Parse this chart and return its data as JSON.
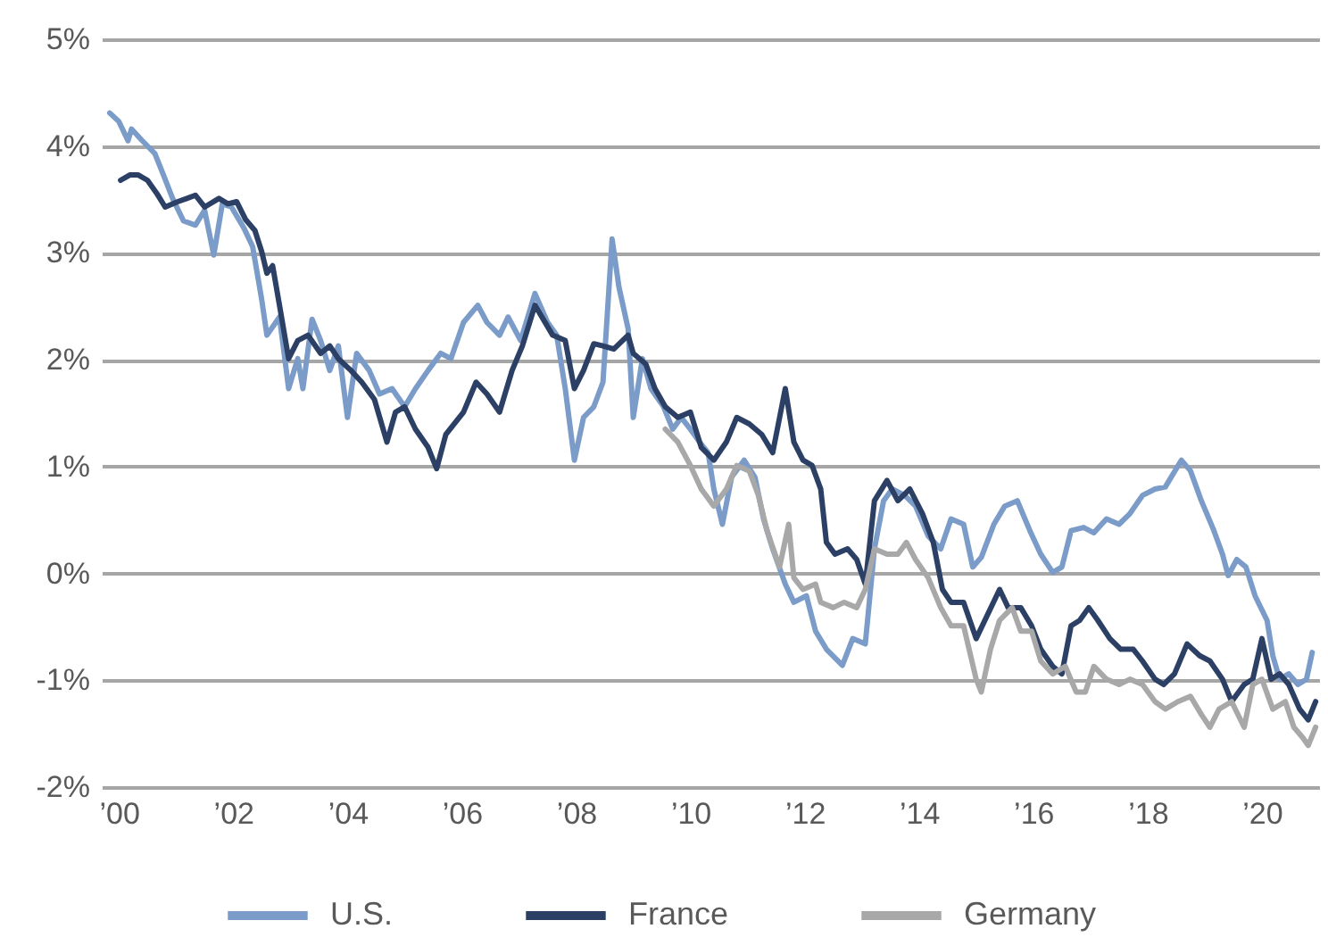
{
  "chart_data": {
    "type": "line",
    "xlim": [
      1999.7,
      2021.0
    ],
    "xticks": [
      {
        "value": 2000,
        "label": "’00"
      },
      {
        "value": 2002,
        "label": "’02"
      },
      {
        "value": 2004,
        "label": "’04"
      },
      {
        "value": 2006,
        "label": "’06"
      },
      {
        "value": 2008,
        "label": "’08"
      },
      {
        "value": 2010,
        "label": "’10"
      },
      {
        "value": 2012,
        "label": "’12"
      },
      {
        "value": 2014,
        "label": "’14"
      },
      {
        "value": 2016,
        "label": "’16"
      },
      {
        "value": 2018,
        "label": "’18"
      },
      {
        "value": 2020,
        "label": "’20"
      }
    ],
    "ylim": [
      -2,
      5
    ],
    "yticks": [
      {
        "value": -2,
        "label": "-2%"
      },
      {
        "value": -1,
        "label": "-1%"
      },
      {
        "value": 0,
        "label": "0%"
      },
      {
        "value": 1,
        "label": "1%"
      },
      {
        "value": 2,
        "label": "2%"
      },
      {
        "value": 3,
        "label": "3%"
      },
      {
        "value": 4,
        "label": "4%"
      },
      {
        "value": 5,
        "label": "5%"
      }
    ],
    "grid": "y",
    "legend": "bottom",
    "series": [
      {
        "name": "U.S.",
        "color": "#7b9cc8",
        "x": [
          1999.84,
          2000.0,
          2000.16,
          2000.22,
          2000.41,
          2000.63,
          2000.78,
          2000.94,
          2001.13,
          2001.34,
          2001.5,
          2001.66,
          2001.81,
          2001.97,
          2002.19,
          2002.34,
          2002.5,
          2002.59,
          2002.81,
          2002.97,
          2003.13,
          2003.22,
          2003.38,
          2003.53,
          2003.69,
          2003.84,
          2004.0,
          2004.16,
          2004.38,
          2004.56,
          2004.78,
          2005.0,
          2005.19,
          2005.41,
          2005.63,
          2005.81,
          2006.03,
          2006.28,
          2006.44,
          2006.66,
          2006.81,
          2007.03,
          2007.28,
          2007.5,
          2007.66,
          2007.81,
          2007.97,
          2008.13,
          2008.31,
          2008.47,
          2008.63,
          2008.75,
          2008.91,
          2009.0,
          2009.16,
          2009.31,
          2009.53,
          2009.69,
          2009.84,
          2010.0,
          2010.16,
          2010.31,
          2010.41,
          2010.56,
          2010.72,
          2010.94,
          2011.13,
          2011.28,
          2011.44,
          2011.66,
          2011.81,
          2012.03,
          2012.19,
          2012.38,
          2012.66,
          2012.84,
          2013.06,
          2013.22,
          2013.38,
          2013.53,
          2013.75,
          2013.94,
          2014.16,
          2014.38,
          2014.56,
          2014.78,
          2014.94,
          2015.09,
          2015.31,
          2015.5,
          2015.72,
          2015.94,
          2016.13,
          2016.34,
          2016.5,
          2016.66,
          2016.88,
          2017.06,
          2017.28,
          2017.5,
          2017.69,
          2017.91,
          2018.13,
          2018.31,
          2018.59,
          2018.75,
          2018.94,
          2019.16,
          2019.31,
          2019.41,
          2019.56,
          2019.72,
          2019.88,
          2020.09,
          2020.19,
          2020.31,
          2020.47,
          2020.63,
          2020.78,
          2020.88
        ],
        "values": [
          4.31,
          4.23,
          4.05,
          4.16,
          4.05,
          3.93,
          3.73,
          3.51,
          3.3,
          3.26,
          3.4,
          2.98,
          3.46,
          3.43,
          3.23,
          3.06,
          2.56,
          2.23,
          2.4,
          1.73,
          2.01,
          1.73,
          2.38,
          2.18,
          1.9,
          2.13,
          1.46,
          2.06,
          1.9,
          1.68,
          1.73,
          1.56,
          1.73,
          1.9,
          2.06,
          2.01,
          2.35,
          2.51,
          2.35,
          2.23,
          2.4,
          2.18,
          2.62,
          2.35,
          2.23,
          1.73,
          1.06,
          1.46,
          1.56,
          1.79,
          3.13,
          2.68,
          2.29,
          1.46,
          2.01,
          1.73,
          1.56,
          1.35,
          1.46,
          1.35,
          1.23,
          1.13,
          0.79,
          0.46,
          0.9,
          1.06,
          0.9,
          0.51,
          0.23,
          -0.1,
          -0.27,
          -0.21,
          -0.54,
          -0.71,
          -0.86,
          -0.61,
          -0.66,
          0.23,
          0.68,
          0.79,
          0.73,
          0.63,
          0.35,
          0.23,
          0.51,
          0.46,
          0.06,
          0.15,
          0.46,
          0.63,
          0.68,
          0.4,
          0.18,
          0.01,
          0.06,
          0.4,
          0.43,
          0.38,
          0.51,
          0.46,
          0.56,
          0.73,
          0.79,
          0.81,
          1.06,
          0.96,
          0.68,
          0.4,
          0.18,
          -0.02,
          0.13,
          0.06,
          -0.21,
          -0.44,
          -0.77,
          -0.99,
          -0.94,
          -1.04,
          -0.99,
          -0.74
        ]
      },
      {
        "name": "France",
        "color": "#2c4066",
        "x": [
          2000.03,
          2000.19,
          2000.34,
          2000.5,
          2000.66,
          2000.81,
          2001.03,
          2001.19,
          2001.34,
          2001.5,
          2001.75,
          2001.91,
          2002.06,
          2002.22,
          2002.38,
          2002.5,
          2002.59,
          2002.69,
          2002.81,
          2002.97,
          2003.13,
          2003.31,
          2003.53,
          2003.69,
          2003.84,
          2004.06,
          2004.25,
          2004.47,
          2004.69,
          2004.84,
          2005.0,
          2005.19,
          2005.41,
          2005.56,
          2005.72,
          2006.03,
          2006.25,
          2006.44,
          2006.66,
          2006.88,
          2007.06,
          2007.28,
          2007.59,
          2007.81,
          2007.97,
          2008.13,
          2008.31,
          2008.47,
          2008.66,
          2008.91,
          2009.0,
          2009.22,
          2009.38,
          2009.56,
          2009.78,
          2010.0,
          2010.19,
          2010.41,
          2010.63,
          2010.81,
          2011.03,
          2011.25,
          2011.44,
          2011.66,
          2011.81,
          2011.97,
          2012.13,
          2012.28,
          2012.38,
          2012.53,
          2012.75,
          2012.91,
          2013.06,
          2013.22,
          2013.44,
          2013.63,
          2013.84,
          2014.06,
          2014.25,
          2014.41,
          2014.56,
          2014.78,
          2015.0,
          2015.41,
          2015.56,
          2015.78,
          2015.97,
          2016.13,
          2016.34,
          2016.5,
          2016.66,
          2016.81,
          2016.97,
          2017.13,
          2017.34,
          2017.53,
          2017.75,
          2017.91,
          2018.13,
          2018.28,
          2018.47,
          2018.69,
          2018.91,
          2019.09,
          2019.31,
          2019.47,
          2019.69,
          2019.84,
          2020.0,
          2020.16,
          2020.31,
          2020.47,
          2020.66,
          2020.81,
          2020.94
        ],
        "values": [
          3.68,
          3.73,
          3.73,
          3.68,
          3.56,
          3.43,
          3.48,
          3.51,
          3.54,
          3.43,
          3.51,
          3.46,
          3.48,
          3.31,
          3.21,
          3.01,
          2.81,
          2.88,
          2.51,
          2.01,
          2.18,
          2.23,
          2.06,
          2.13,
          2.01,
          1.9,
          1.79,
          1.63,
          1.23,
          1.51,
          1.56,
          1.35,
          1.18,
          0.98,
          1.3,
          1.51,
          1.79,
          1.68,
          1.51,
          1.9,
          2.13,
          2.51,
          2.23,
          2.18,
          1.73,
          1.9,
          2.15,
          2.13,
          2.1,
          2.23,
          2.06,
          1.96,
          1.73,
          1.56,
          1.46,
          1.51,
          1.18,
          1.06,
          1.23,
          1.46,
          1.4,
          1.3,
          1.13,
          1.73,
          1.23,
          1.06,
          1.01,
          0.79,
          0.29,
          0.18,
          0.23,
          0.13,
          -0.1,
          0.68,
          0.87,
          0.68,
          0.79,
          0.56,
          0.29,
          -0.15,
          -0.27,
          -0.27,
          -0.61,
          -0.15,
          -0.32,
          -0.32,
          -0.49,
          -0.71,
          -0.87,
          -0.94,
          -0.49,
          -0.44,
          -0.32,
          -0.44,
          -0.61,
          -0.71,
          -0.71,
          -0.82,
          -0.99,
          -1.04,
          -0.94,
          -0.66,
          -0.77,
          -0.82,
          -0.99,
          -1.2,
          -1.04,
          -0.99,
          -0.61,
          -0.99,
          -0.94,
          -1.04,
          -1.27,
          -1.37,
          -1.2
        ]
      },
      {
        "name": "Germany",
        "color": "#a8a8a8",
        "x": [
          2009.56,
          2009.78,
          2010.0,
          2010.19,
          2010.41,
          2010.63,
          2010.81,
          2011.03,
          2011.19,
          2011.34,
          2011.56,
          2011.72,
          2011.81,
          2011.97,
          2012.19,
          2012.28,
          2012.5,
          2012.69,
          2012.91,
          2013.06,
          2013.22,
          2013.44,
          2013.63,
          2013.78,
          2013.94,
          2014.16,
          2014.38,
          2014.56,
          2014.78,
          2015.0,
          2015.09,
          2015.25,
          2015.41,
          2015.63,
          2015.78,
          2015.97,
          2016.13,
          2016.34,
          2016.56,
          2016.75,
          2016.91,
          2017.06,
          2017.28,
          2017.5,
          2017.69,
          2017.91,
          2018.13,
          2018.31,
          2018.53,
          2018.75,
          2018.94,
          2019.09,
          2019.25,
          2019.47,
          2019.69,
          2019.84,
          2020.0,
          2020.19,
          2020.41,
          2020.56,
          2020.72,
          2020.81,
          2020.94
        ],
        "values": [
          1.35,
          1.23,
          1.01,
          0.79,
          0.63,
          0.79,
          1.01,
          0.96,
          0.73,
          0.4,
          0.06,
          0.46,
          -0.04,
          -0.15,
          -0.1,
          -0.27,
          -0.32,
          -0.27,
          -0.32,
          -0.15,
          0.23,
          0.18,
          0.18,
          0.29,
          0.13,
          -0.04,
          -0.32,
          -0.49,
          -0.49,
          -0.99,
          -1.11,
          -0.71,
          -0.44,
          -0.32,
          -0.54,
          -0.54,
          -0.82,
          -0.94,
          -0.87,
          -1.11,
          -1.11,
          -0.87,
          -0.99,
          -1.04,
          -0.99,
          -1.04,
          -1.2,
          -1.27,
          -1.2,
          -1.15,
          -1.32,
          -1.44,
          -1.27,
          -1.2,
          -1.44,
          -1.04,
          -0.99,
          -1.27,
          -1.2,
          -1.44,
          -1.54,
          -1.61,
          -1.44
        ]
      }
    ]
  }
}
